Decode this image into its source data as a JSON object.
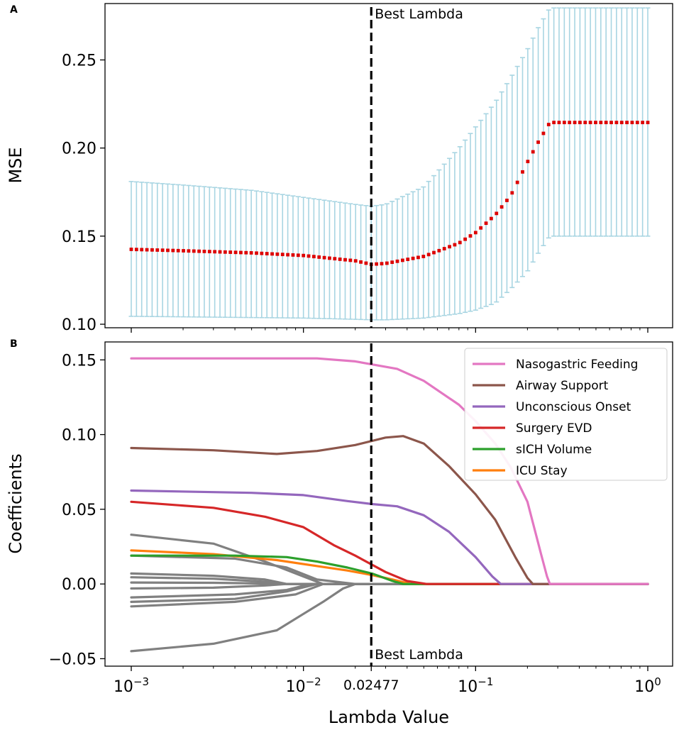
{
  "panels": {
    "a_label": "A",
    "b_label": "B"
  },
  "chart_data": [
    {
      "type": "line",
      "panel": "A",
      "title": "",
      "xlabel": "",
      "ylabel": "MSE",
      "xscale": "log",
      "xlim": [
        0.001,
        1.0
      ],
      "ylim": [
        0.098,
        0.282
      ],
      "yticks": [
        0.1,
        0.15,
        0.2,
        0.25
      ],
      "ytick_labels": [
        "0.10",
        "0.15",
        "0.20",
        "0.25"
      ],
      "annotation": {
        "x": 0.02477,
        "label": "Best Lambda"
      },
      "mse_curve": {
        "x": [
          0.001,
          0.002,
          0.005,
          0.01,
          0.02,
          0.02477,
          0.03,
          0.05,
          0.08,
          0.1,
          0.13,
          0.16,
          0.2,
          0.23,
          0.27,
          0.5,
          1.0
        ],
        "mean": [
          0.1425,
          0.1417,
          0.1405,
          0.139,
          0.136,
          0.134,
          0.1345,
          0.1385,
          0.146,
          0.152,
          0.162,
          0.173,
          0.192,
          0.203,
          0.2145,
          0.2145,
          0.2145
        ],
        "upper": [
          0.181,
          0.179,
          0.176,
          0.172,
          0.168,
          0.167,
          0.168,
          0.178,
          0.2,
          0.212,
          0.226,
          0.24,
          0.256,
          0.268,
          0.2795,
          0.2795,
          0.2795
        ],
        "lower": [
          0.1045,
          0.1042,
          0.1038,
          0.1035,
          0.1028,
          0.1025,
          0.1025,
          0.1035,
          0.106,
          0.108,
          0.112,
          0.12,
          0.13,
          0.14,
          0.15,
          0.15,
          0.15
        ]
      },
      "colors": {
        "mean": "#dd0000",
        "errorbar": "#a8d5e2",
        "vline": "#000000"
      }
    },
    {
      "type": "line",
      "panel": "B",
      "title": "",
      "xlabel": "Lambda Value",
      "ylabel": "Coefficients",
      "xscale": "log",
      "xlim": [
        0.001,
        1.0
      ],
      "ylim": [
        -0.055,
        0.162
      ],
      "yticks": [
        -0.05,
        0.0,
        0.05,
        0.1,
        0.15
      ],
      "ytick_labels": [
        "−0.05",
        "0.00",
        "0.05",
        "0.10",
        "0.15"
      ],
      "xticks": [
        {
          "value": 0.001,
          "base": "10",
          "exp": "−3"
        },
        {
          "value": 0.01,
          "base": "10",
          "exp": "−2"
        },
        {
          "value": 0.1,
          "base": "10",
          "exp": "−1"
        },
        {
          "value": 1.0,
          "base": "10",
          "exp": "0"
        }
      ],
      "extra_tick": {
        "value": 0.02477,
        "label": "0.02477"
      },
      "annotation": {
        "x": 0.02477,
        "label": "Best Lambda"
      },
      "legend_location": "upper-right",
      "series": [
        {
          "name": "Nasogastric Feeding",
          "color": "#e377c2",
          "x": [
            0.001,
            0.005,
            0.012,
            0.02,
            0.035,
            0.05,
            0.08,
            0.1,
            0.13,
            0.16,
            0.2,
            0.24,
            0.26,
            0.27,
            1.0
          ],
          "y": [
            0.151,
            0.151,
            0.151,
            0.149,
            0.144,
            0.136,
            0.12,
            0.109,
            0.094,
            0.078,
            0.055,
            0.02,
            0.005,
            0.0,
            0.0
          ]
        },
        {
          "name": "Airway Support",
          "color": "#8c564b",
          "x": [
            0.001,
            0.003,
            0.007,
            0.012,
            0.02,
            0.03,
            0.038,
            0.05,
            0.07,
            0.1,
            0.13,
            0.17,
            0.2,
            0.215,
            1.0
          ],
          "y": [
            0.091,
            0.0895,
            0.087,
            0.089,
            0.093,
            0.098,
            0.099,
            0.094,
            0.079,
            0.06,
            0.043,
            0.018,
            0.004,
            0.0,
            0.0
          ]
        },
        {
          "name": "Unconscious Onset",
          "color": "#9467bd",
          "x": [
            0.001,
            0.005,
            0.01,
            0.018,
            0.025,
            0.035,
            0.05,
            0.07,
            0.1,
            0.125,
            0.14,
            1.0
          ],
          "y": [
            0.0625,
            0.061,
            0.0595,
            0.0555,
            0.0535,
            0.052,
            0.046,
            0.035,
            0.018,
            0.005,
            0.0,
            0.0
          ]
        },
        {
          "name": "Surgery EVD",
          "color": "#d62728",
          "x": [
            0.001,
            0.003,
            0.006,
            0.01,
            0.015,
            0.02,
            0.03,
            0.04,
            0.052,
            1.0
          ],
          "y": [
            0.055,
            0.051,
            0.045,
            0.038,
            0.026,
            0.019,
            0.008,
            0.002,
            0.0,
            1e-09
          ]
        },
        {
          "name": "sICH Volume",
          "color": "#2ca02c",
          "x": [
            0.001,
            0.004,
            0.008,
            0.012,
            0.018,
            0.025,
            0.033,
            0.038,
            1.0
          ],
          "y": [
            0.019,
            0.019,
            0.018,
            0.015,
            0.011,
            0.007,
            0.002,
            0.0,
            0.0
          ]
        },
        {
          "name": "ICU Stay",
          "color": "#ff7f0e",
          "x": [
            0.001,
            0.003,
            0.007,
            0.012,
            0.018,
            0.025,
            0.033,
            0.042,
            1.0
          ],
          "y": [
            0.0225,
            0.02,
            0.016,
            0.012,
            0.009,
            0.006,
            0.003,
            0.0,
            0.0
          ]
        }
      ],
      "other_series": {
        "color": "#808080",
        "lines": [
          {
            "x": [
              0.001,
              0.003,
              0.006,
              0.01,
              0.013,
              0.02
            ],
            "y": [
              0.033,
              0.027,
              0.015,
              0.005,
              0.0,
              0.0
            ]
          },
          {
            "x": [
              0.001,
              0.004,
              0.008,
              0.012,
              0.02
            ],
            "y": [
              0.019,
              0.017,
              0.011,
              0.003,
              0.0
            ]
          },
          {
            "x": [
              0.001,
              0.003,
              0.006,
              0.008,
              0.02
            ],
            "y": [
              0.007,
              0.0055,
              0.003,
              0.0,
              0.0
            ]
          },
          {
            "x": [
              0.001,
              0.003,
              0.006,
              0.008,
              0.02
            ],
            "y": [
              0.0045,
              0.0035,
              0.0015,
              0.0,
              0.0
            ]
          },
          {
            "x": [
              0.001,
              0.003,
              0.006,
              0.008,
              0.02
            ],
            "y": [
              0.001,
              0.0008,
              0.0003,
              0.0,
              0.0
            ]
          },
          {
            "x": [
              0.001,
              0.003,
              0.006,
              0.008,
              0.02
            ],
            "y": [
              -0.003,
              -0.0025,
              -0.001,
              0.0,
              0.0
            ]
          },
          {
            "x": [
              0.001,
              0.004,
              0.008,
              0.011,
              0.02
            ],
            "y": [
              -0.009,
              -0.007,
              -0.004,
              0.0,
              0.0
            ]
          },
          {
            "x": [
              0.001,
              0.004,
              0.008,
              0.012,
              0.02
            ],
            "y": [
              -0.012,
              -0.01,
              -0.005,
              0.0,
              0.0
            ]
          },
          {
            "x": [
              0.001,
              0.004,
              0.009,
              0.013,
              0.02
            ],
            "y": [
              -0.015,
              -0.012,
              -0.007,
              0.0,
              0.0
            ]
          },
          {
            "x": [
              0.001,
              0.003,
              0.007,
              0.01,
              0.013,
              0.017,
              0.02,
              0.03
            ],
            "y": [
              -0.045,
              -0.04,
              -0.031,
              -0.02,
              -0.012,
              -0.003,
              0.0,
              0.0
            ]
          }
        ]
      },
      "colors": {
        "vline": "#000000"
      }
    }
  ]
}
